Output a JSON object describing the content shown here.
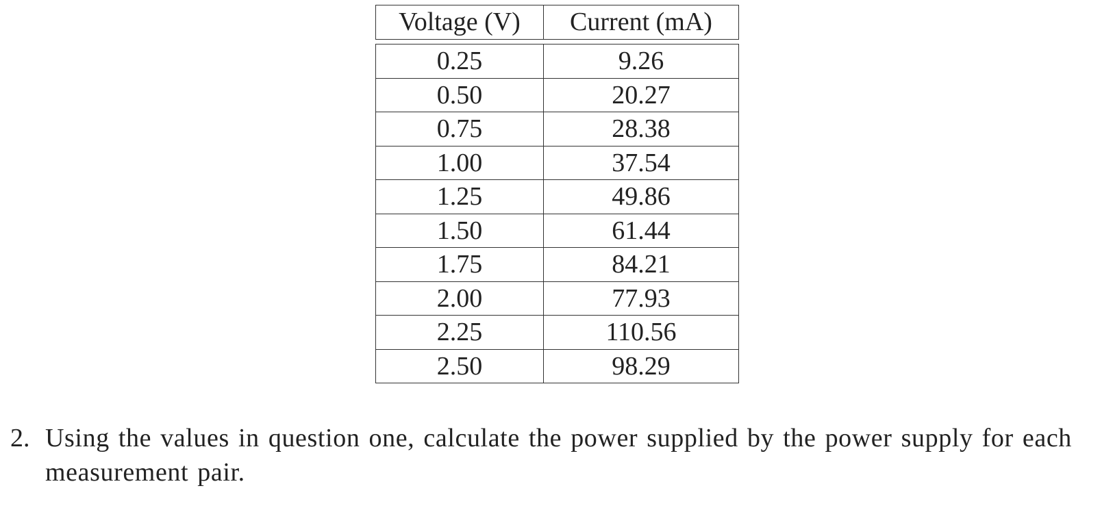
{
  "table": {
    "header": [
      "Voltage (V)",
      "Current (mA)"
    ],
    "rows": [
      [
        "0.25",
        "9.26"
      ],
      [
        "0.50",
        "20.27"
      ],
      [
        "0.75",
        "28.38"
      ],
      [
        "1.00",
        "37.54"
      ],
      [
        "1.25",
        "49.86"
      ],
      [
        "1.50",
        "61.44"
      ],
      [
        "1.75",
        "84.21"
      ],
      [
        "2.00",
        "77.93"
      ],
      [
        "2.25",
        "110.56"
      ],
      [
        "2.50",
        "98.29"
      ]
    ]
  },
  "question": {
    "number": "2.",
    "text": "Using the values in question one, calculate the power supplied by the power supply for each measurement pair."
  }
}
